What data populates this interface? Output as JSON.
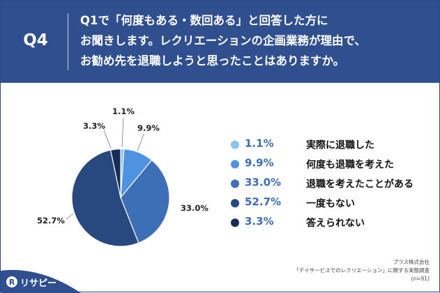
{
  "header": {
    "question_number": "Q4",
    "question_lines": [
      "Q1で「何度もある・数回ある」と回答した方に",
      "お聞きします。レクリエーションの企画業務が理由で、",
      "お勧め先を退職しようと思ったことはありますか。"
    ]
  },
  "chart_data": {
    "type": "pie",
    "title": "",
    "categories": [
      "実際に退職した",
      "何度も退職を考えた",
      "退職を考えたことがある",
      "一度もない",
      "答えられない"
    ],
    "values": [
      1.1,
      9.9,
      33.0,
      52.7,
      3.3
    ],
    "labels": [
      "1.1%",
      "9.9%",
      "33.0%",
      "52.7%",
      "3.3%"
    ],
    "colors": [
      "#8cc2ee",
      "#4f93e0",
      "#3d6fb6",
      "#28497f",
      "#172d56"
    ],
    "start": "top",
    "direction": "clockwise",
    "legend_position": "right"
  },
  "legend": {
    "items": [
      {
        "pct": "1.1%",
        "label": "実際に退職した"
      },
      {
        "pct": "9.9%",
        "label": "何度も退職を考えた"
      },
      {
        "pct": "33.0%",
        "label": "退職を考えたことがある"
      },
      {
        "pct": "52.7%",
        "label": "一度もない"
      },
      {
        "pct": "3.3%",
        "label": "答えられない"
      }
    ]
  },
  "footer": {
    "logo_text": "リサピー",
    "logo_icon": "r-icon",
    "source_lines": [
      "プラス株式会社",
      "「デイサービスでのレクリエーション」に関する実態調査",
      "(n=91)"
    ]
  }
}
